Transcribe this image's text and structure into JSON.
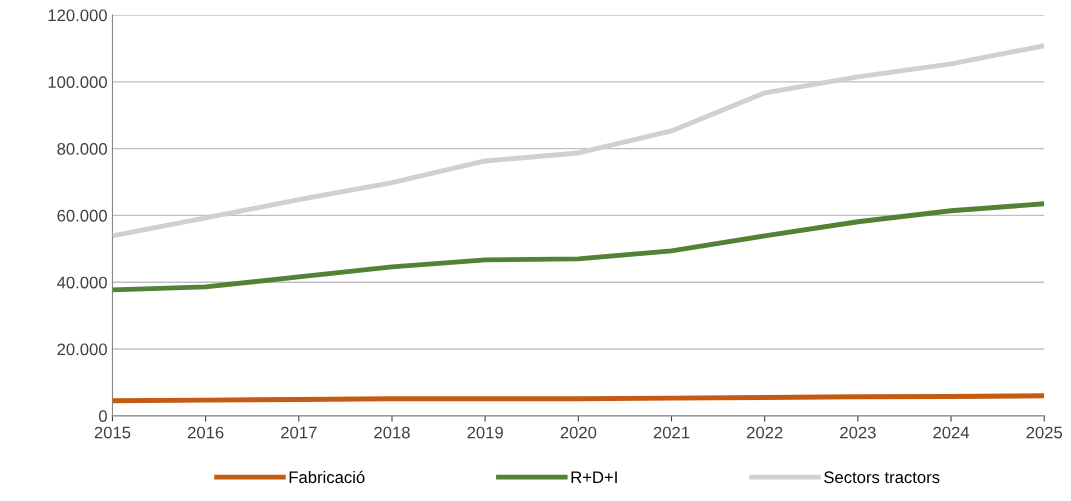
{
  "chart_data": {
    "type": "line",
    "categories": [
      "2015",
      "2016",
      "2017",
      "2018",
      "2019",
      "2020",
      "2021",
      "2022",
      "2023",
      "2024",
      "2025"
    ],
    "series": [
      {
        "name": "Fabricació",
        "color": "#c55a11",
        "values": [
          4500,
          4700,
          4900,
          5100,
          5100,
          5100,
          5300,
          5500,
          5700,
          5800,
          6000
        ]
      },
      {
        "name": "R+D+I",
        "color": "#538135",
        "values": [
          37700,
          38600,
          41600,
          44600,
          46700,
          47000,
          49400,
          53900,
          58100,
          61400,
          63500
        ]
      },
      {
        "name": "Sectors tractors",
        "color": "#d0d0d0",
        "values": [
          53900,
          59300,
          64700,
          69800,
          76300,
          78700,
          85300,
          96700,
          101500,
          105400,
          110800
        ]
      }
    ],
    "ylim": [
      0,
      120000
    ],
    "yticks": [
      {
        "value": 0,
        "label": "0"
      },
      {
        "value": 20000,
        "label": "20.000"
      },
      {
        "value": 40000,
        "label": "40.000"
      },
      {
        "value": 60000,
        "label": "60.000"
      },
      {
        "value": 80000,
        "label": "80.000"
      },
      {
        "value": 100000,
        "label": "100.000"
      },
      {
        "value": 120000,
        "label": "120.000"
      }
    ],
    "grid": "y",
    "legend": "bottom",
    "marker": "none",
    "line_style": "solid"
  }
}
